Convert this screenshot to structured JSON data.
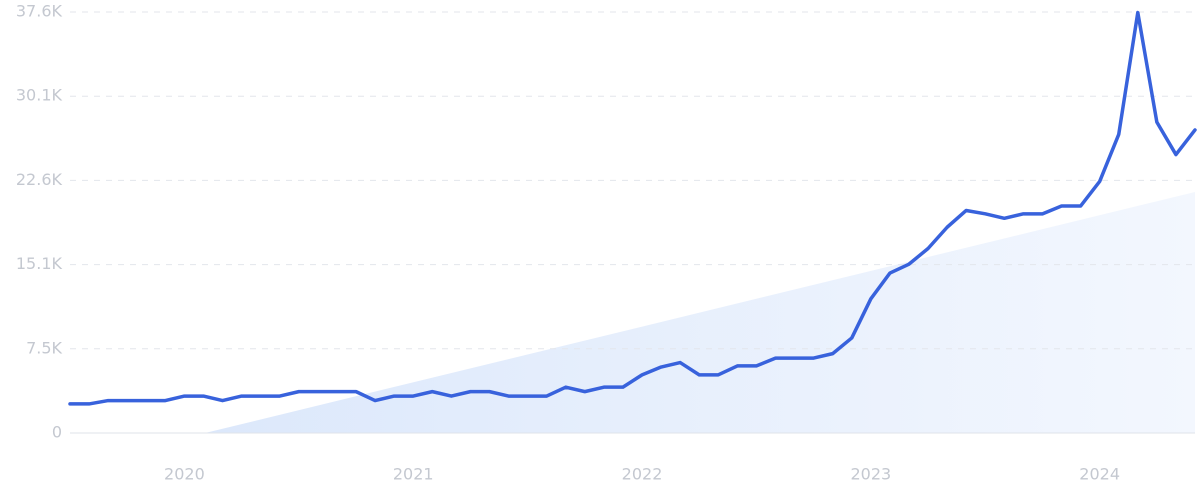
{
  "chart_data": {
    "type": "line",
    "categories": [
      null,
      null,
      null,
      null,
      null,
      null,
      "2020",
      null,
      null,
      null,
      null,
      null,
      null,
      null,
      null,
      null,
      null,
      null,
      "2021",
      null,
      null,
      null,
      null,
      null,
      null,
      null,
      null,
      null,
      null,
      null,
      "2022",
      null,
      null,
      null,
      null,
      null,
      null,
      null,
      null,
      null,
      null,
      null,
      "2023",
      null,
      null,
      null,
      null,
      null,
      null,
      null,
      null,
      null,
      null,
      null,
      "2024",
      null,
      null,
      null,
      null,
      null
    ],
    "series": [
      {
        "color": "#3862dc",
        "values": [
          2600,
          2600,
          2900,
          2900,
          2900,
          2900,
          3300,
          3300,
          2900,
          3300,
          3300,
          3300,
          3700,
          3700,
          3700,
          3700,
          2900,
          3300,
          3300,
          3700,
          3300,
          3700,
          3700,
          3300,
          3300,
          3300,
          4100,
          3700,
          4100,
          4100,
          5200,
          5900,
          6300,
          5200,
          5200,
          6000,
          6000,
          6700,
          6700,
          6700,
          7100,
          8500,
          12000,
          14300,
          15100,
          16500,
          18400,
          19900,
          19600,
          19200,
          19600,
          19600,
          20300,
          20300,
          22500,
          26700,
          37600,
          27800,
          24900,
          27100
        ]
      }
    ],
    "ylim": [
      0,
      37650
    ],
    "yticks": [
      0,
      {
        "value": 7530,
        "label": "7.5K"
      },
      {
        "value": 15060,
        "label": "15.1K"
      },
      {
        "value": 22590,
        "label": "22.6K"
      },
      {
        "value": 30120,
        "label": "30.1K"
      },
      {
        "value": 37650,
        "label": "37.6K"
      }
    ],
    "grid": true
  }
}
